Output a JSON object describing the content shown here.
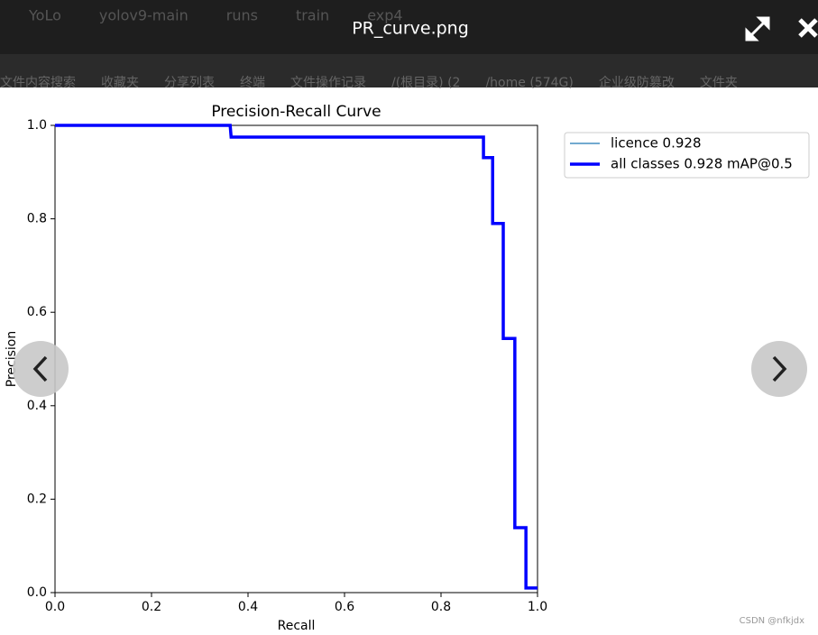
{
  "viewer": {
    "title": "PR_curve.png",
    "breadcrumb": [
      "YoLo",
      "yolov9-main",
      "runs",
      "train",
      "exp4"
    ],
    "toolbar": [
      "文件内容搜索",
      "收藏夹",
      "分享列表",
      "终端",
      "文件操作记录",
      "/(根目录) (2",
      "/home (574G)",
      "企业级防篡改",
      "文件夹"
    ]
  },
  "chart_data": {
    "type": "line",
    "title": "Precision-Recall Curve",
    "x_label": "Recall",
    "y_label": "Precision",
    "x": [
      0,
      0.363,
      0.365,
      0.888,
      0.888,
      0.907,
      0.907,
      0.929,
      0.929,
      0.953,
      0.953,
      0.976,
      0.976,
      1.0
    ],
    "series": [
      {
        "name": "licence 0.928",
        "color": "#1f77b4",
        "values": [
          1,
          1,
          0.975,
          0.975,
          0.931,
          0.931,
          0.79,
          0.79,
          0.544,
          0.544,
          0.139,
          0.139,
          0.01,
          0.01
        ]
      },
      {
        "name": "all classes 0.928 mAP@0.5",
        "color": "#0000ff",
        "values": [
          1,
          1,
          0.975,
          0.975,
          0.931,
          0.931,
          0.79,
          0.79,
          0.544,
          0.544,
          0.139,
          0.139,
          0.01,
          0.01
        ]
      }
    ],
    "xlim": [
      0,
      1
    ],
    "ylim": [
      0,
      1
    ],
    "xticks": [
      {
        "value": 0,
        "label": "0.0"
      },
      0.2,
      0.4,
      0.6,
      0.8,
      {
        "value": 1,
        "label": "1.0"
      }
    ],
    "yticks": [
      {
        "value": 0,
        "label": "0.0"
      },
      0.2,
      0.4,
      0.6,
      0.8,
      {
        "value": 1,
        "label": "1.0"
      }
    ],
    "legend": "upper right outside",
    "grid": false
  },
  "watermark": "CSDN @nfkjdx"
}
